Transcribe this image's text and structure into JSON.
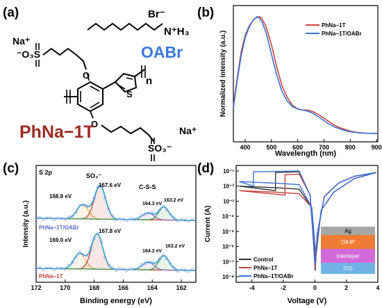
{
  "panels": {
    "a": "(a)",
    "b": "(b)",
    "c": "(c)",
    "d": "(d)"
  },
  "structure": {
    "bromide": "Br⁻",
    "ammonium": "N⁺H₃",
    "oabr": "OABr",
    "na_left": "Na⁺",
    "sulfonate_left": "⁻O₃S",
    "na_right": "Na⁺",
    "sulfonate_right": "SO₃⁻",
    "repeat": "n",
    "polymer": "PhNa−1T",
    "colors": {
      "oabr": "#3a78d8",
      "polymer": "#9b2b24"
    }
  },
  "chart_data": [
    {
      "panel": "b",
      "type": "line",
      "xlabel": "Wavelength (nm)",
      "ylabel": "Normalized intensity (a.u.)",
      "xlim": [
        355,
        905
      ],
      "ylim": [
        0,
        1.0
      ],
      "xticks": [
        400,
        500,
        600,
        700,
        800,
        900
      ],
      "legend": "top-right",
      "series": [
        {
          "name": "PhNa−1T",
          "color": "#c8423c",
          "x": [
            355,
            370,
            385,
            400,
            415,
            430,
            445,
            455,
            465,
            480,
            500,
            520,
            540,
            560,
            580,
            600,
            620,
            640,
            660,
            680,
            700,
            720,
            740,
            760,
            780,
            800,
            830,
            860,
            905
          ],
          "y": [
            0.24,
            0.48,
            0.7,
            0.84,
            0.92,
            0.97,
            0.995,
            1.0,
            0.98,
            0.91,
            0.76,
            0.57,
            0.41,
            0.31,
            0.24,
            0.21,
            0.2,
            0.2,
            0.185,
            0.16,
            0.13,
            0.1,
            0.07,
            0.05,
            0.035,
            0.02,
            0.008,
            0.003,
            0.0
          ]
        },
        {
          "name": "PhNa−1T/OABr",
          "color": "#3a6fd8",
          "x": [
            355,
            370,
            385,
            400,
            415,
            430,
            445,
            455,
            465,
            480,
            500,
            520,
            540,
            560,
            580,
            600,
            620,
            640,
            660,
            680,
            700,
            720,
            740,
            760,
            780,
            800,
            830,
            860,
            905
          ],
          "y": [
            0.22,
            0.46,
            0.67,
            0.82,
            0.91,
            0.97,
            1.0,
            0.985,
            0.95,
            0.86,
            0.68,
            0.5,
            0.36,
            0.28,
            0.23,
            0.21,
            0.2,
            0.19,
            0.17,
            0.14,
            0.11,
            0.08,
            0.055,
            0.04,
            0.025,
            0.015,
            0.006,
            0.002,
            0.0
          ]
        }
      ]
    },
    {
      "panel": "c",
      "type": "line",
      "xlabel": "Binding energy (eV)",
      "ylabel": "Intensity (a.u.)",
      "xlim": [
        172,
        161
      ],
      "xticks": [
        172,
        170,
        168,
        166,
        164,
        162
      ],
      "tag": "S 2p",
      "annotations": {
        "so3": "SO₃⁻",
        "css": "C-S-S",
        "top": [
          "168.8 eV",
          "167.6 eV",
          "164.3 eV",
          "163.2 eV"
        ],
        "bottom": [
          "169.0 eV",
          "167.8 eV",
          "164.3 eV",
          "163.2 eV"
        ]
      },
      "series": [
        {
          "name": "PhNa−1T/OABr",
          "color": "#5a6ad0",
          "peaks": [
            [
              168.8,
              0.33,
              0.55
            ],
            [
              167.6,
              0.78,
              0.55
            ],
            [
              164.3,
              0.16,
              0.55
            ],
            [
              163.2,
              0.3,
              0.5
            ]
          ]
        },
        {
          "name": "PhNa−1T",
          "color": "#c8423c",
          "peaks": [
            [
              169.0,
              0.36,
              0.55
            ],
            [
              167.8,
              0.82,
              0.55
            ],
            [
              164.3,
              0.18,
              0.55
            ],
            [
              163.2,
              0.33,
              0.5
            ]
          ]
        }
      ]
    },
    {
      "panel": "d",
      "type": "line",
      "xlabel": "Voltage (V)",
      "ylabel": "Current (A)",
      "xlim": [
        -5,
        4
      ],
      "xticks": [
        -4,
        -2,
        0,
        2,
        4
      ],
      "ylog": true,
      "yticks": [
        "10⁻⁸",
        "10⁻⁷",
        "10⁻⁶",
        "10⁻⁵",
        "10⁻⁴",
        "10⁻³",
        "10⁻²",
        "10⁻¹"
      ],
      "legend": "bottom-left",
      "series": [
        {
          "name": "Control",
          "color": "#333333"
        },
        {
          "name": "PhNa−1T",
          "color": "#c8423c"
        },
        {
          "name": "PhNa−1T/OABr",
          "color": "#3a6fd8"
        }
      ],
      "device_stack": [
        {
          "label": "Ag",
          "color": "#a7a7a7"
        },
        {
          "label": "OIHP",
          "color": "#ef7c34"
        },
        {
          "label": "Interlayer",
          "color": "#d16ad8"
        },
        {
          "label": "ITO",
          "color": "#73b2e6"
        }
      ]
    }
  ]
}
